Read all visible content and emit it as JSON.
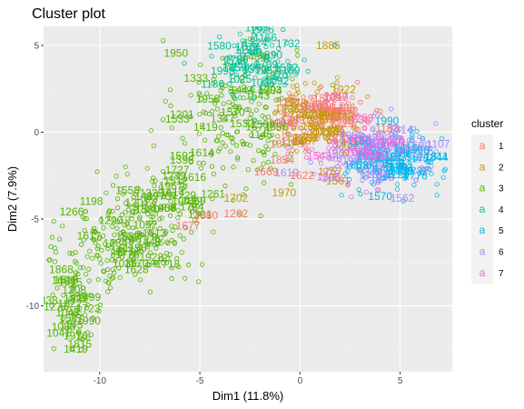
{
  "chart_data": {
    "type": "scatter",
    "title": "Cluster plot",
    "xlabel": "Dim1 (11.8%)",
    "ylabel": "Dim2 (7.9%)",
    "xlim": [
      -12.8,
      7.6
    ],
    "ylim": [
      -13.8,
      6.1
    ],
    "x_ticks": [
      -10,
      -5,
      0,
      5
    ],
    "x_tick_labels": [
      "-10",
      "-5",
      "0",
      "5"
    ],
    "y_ticks": [
      -10,
      -5,
      0,
      5
    ],
    "y_tick_labels": [
      "-10",
      "-5",
      "0",
      "5"
    ],
    "grid": true,
    "legend": {
      "title": "cluster",
      "position": "right"
    },
    "series": [
      {
        "name": "1",
        "color": "#F8766D",
        "center": [
          1.2,
          0.6
        ],
        "spread": [
          1.2,
          0.9
        ],
        "count": 110,
        "labels": [
          {
            "text": "1854",
            "x": -1.5,
            "y": -1.8
          },
          {
            "text": "1669",
            "x": -2.3,
            "y": -2.5
          },
          {
            "text": "1262",
            "x": -3.8,
            "y": -4.9
          },
          {
            "text": "1850",
            "x": -1.5,
            "y": -0.9
          },
          {
            "text": "1580",
            "x": -5.3,
            "y": -5.0
          },
          {
            "text": "1677",
            "x": -6.2,
            "y": -5.6
          },
          {
            "text": "1622",
            "x": -0.5,
            "y": -2.7
          }
        ]
      },
      {
        "name": "2",
        "color": "#C49A00",
        "center": [
          0.9,
          0.9
        ],
        "spread": [
          1.1,
          1.1
        ],
        "count": 80,
        "labels": [
          {
            "text": "1702",
            "x": -3.8,
            "y": -4.0
          },
          {
            "text": "1970",
            "x": -1.4,
            "y": -3.7
          },
          {
            "text": "1885",
            "x": 0.8,
            "y": 4.8
          },
          {
            "text": "1757",
            "x": 0.9,
            "y": -2.5
          },
          {
            "text": "1561",
            "x": 1.3,
            "y": -3.0
          }
        ]
      },
      {
        "name": "3",
        "color": "#53B400",
        "center": [
          -3.2,
          1.0
        ],
        "spread": [
          1.5,
          2.2
        ],
        "count": 170,
        "extra": [
          {
            "center": [
              -8.4,
              -6.2
            ],
            "spread": [
              1.6,
              1.4
            ],
            "count": 230
          },
          {
            "center": [
              -11.2,
              -10.0
            ],
            "spread": [
              0.7,
              1.4
            ],
            "count": 70
          },
          {
            "center": [
              -6.5,
              -3.8
            ],
            "spread": [
              1.2,
              1.0
            ],
            "count": 60
          }
        ],
        "labels": [
          {
            "text": "1266",
            "x": -12.0,
            "y": -4.8
          },
          {
            "text": "1398",
            "x": -6.5,
            "y": -1.8
          },
          {
            "text": "1958",
            "x": -5.2,
            "y": 1.7
          },
          {
            "text": "1614",
            "x": -5.5,
            "y": -1.4
          },
          {
            "text": "1718",
            "x": -7.2,
            "y": -7.8
          },
          {
            "text": "1539",
            "x": -9.2,
            "y": -6.2
          },
          {
            "text": "1175",
            "x": -12.0,
            "y": -11.3
          },
          {
            "text": "1815",
            "x": -11.6,
            "y": -12.4
          },
          {
            "text": "1419",
            "x": -11.8,
            "y": -12.7
          },
          {
            "text": "1047",
            "x": -12.2,
            "y": -10.6
          },
          {
            "text": "1338",
            "x": -13.3,
            "y": -9.9
          },
          {
            "text": "1333",
            "x": -5.8,
            "y": 2.9
          },
          {
            "text": "1198",
            "x": -11.0,
            "y": -4.2
          },
          {
            "text": "1784",
            "x": -6.0,
            "y": -4.5
          },
          {
            "text": "1512",
            "x": -6.8,
            "y": -3.0
          },
          {
            "text": "1201",
            "x": -6.5,
            "y": 0.8
          },
          {
            "text": "1532",
            "x": -3.5,
            "y": 0.3
          },
          {
            "text": "1904",
            "x": -2.1,
            "y": 2.2
          },
          {
            "text": "1596",
            "x": -1.8,
            "y": 0.1
          }
        ]
      },
      {
        "name": "4",
        "color": "#00C094",
        "center": [
          -2.0,
          4.0
        ],
        "spread": [
          1.3,
          1.0
        ],
        "count": 70,
        "labels": [
          {
            "text": "1732",
            "x": -1.2,
            "y": 4.9
          },
          {
            "text": "1582",
            "x": -1.3,
            "y": 3.5
          },
          {
            "text": "1926",
            "x": -2.5,
            "y": 5.7
          }
        ]
      },
      {
        "name": "5",
        "color": "#00B6EB",
        "center": [
          4.7,
          -1.8
        ],
        "spread": [
          1.2,
          0.8
        ],
        "count": 120,
        "labels": [
          {
            "text": "1570",
            "x": 3.4,
            "y": -3.9
          },
          {
            "text": "1863",
            "x": 2.2,
            "y": -2.1
          }
        ]
      },
      {
        "name": "6",
        "color": "#A58AFF",
        "center": [
          4.0,
          -1.2
        ],
        "spread": [
          1.5,
          0.9
        ],
        "count": 160,
        "labels": [
          {
            "text": "1562",
            "x": 4.5,
            "y": -4.0
          },
          {
            "text": "1599",
            "x": 5.3,
            "y": -1.0
          }
        ]
      },
      {
        "name": "7",
        "color": "#FB61D7",
        "center": [
          2.5,
          -1.0
        ],
        "spread": [
          1.4,
          0.9
        ],
        "count": 60,
        "labels": [
          {
            "text": "1019",
            "x": 1.2,
            "y": 1.8
          }
        ]
      }
    ]
  }
}
